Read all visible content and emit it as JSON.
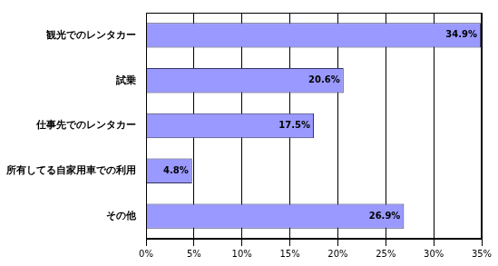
{
  "chart_data": {
    "type": "bar",
    "orientation": "horizontal",
    "categories": [
      "観光でのレンタカー",
      "試乗",
      "仕事先でのレンタカー",
      "所有してる自家用車での利用",
      "その他"
    ],
    "values": [
      34.9,
      20.6,
      17.5,
      4.8,
      26.9
    ],
    "value_labels": [
      "34.9%",
      "20.6%",
      "17.5%",
      "4.8%",
      "26.9%"
    ],
    "data_labels": true,
    "color": "#9999ff",
    "xlim": [
      0,
      35
    ],
    "xticks": [
      {
        "value": 0,
        "label": "0%"
      },
      {
        "value": 5,
        "label": "5%"
      },
      {
        "value": 10,
        "label": "10%"
      },
      {
        "value": 15,
        "label": "15%"
      },
      {
        "value": 20,
        "label": "20%"
      },
      {
        "value": 25,
        "label": "25%"
      },
      {
        "value": 30,
        "label": "30%"
      },
      {
        "value": 35,
        "label": "35%"
      }
    ],
    "grid": true
  }
}
